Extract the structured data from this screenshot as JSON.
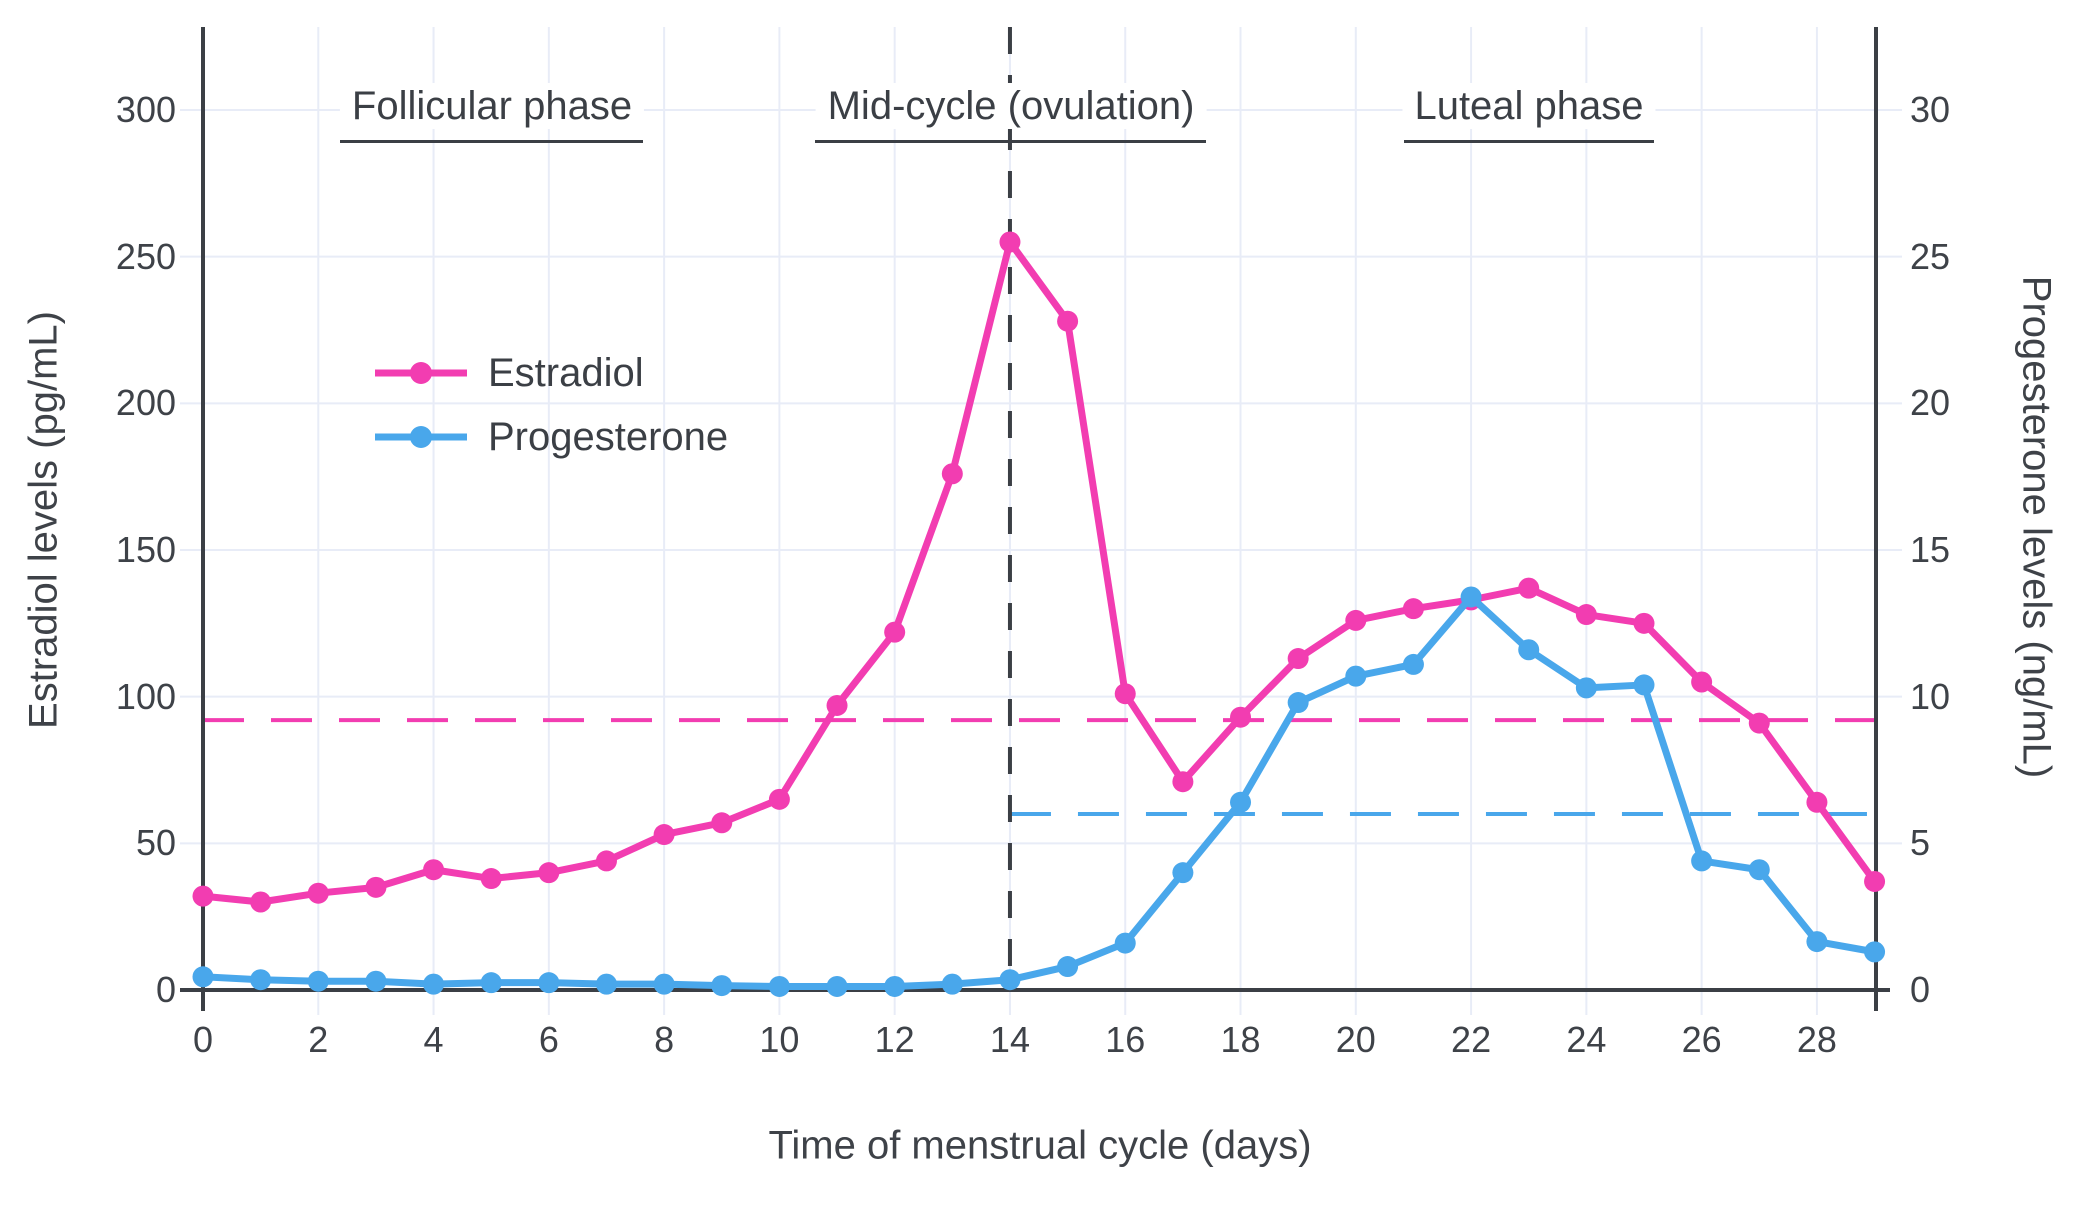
{
  "chart_data": {
    "type": "line",
    "title": "",
    "xlabel": "Time of menstrual cycle (days)",
    "ylabel_left": "Estradiol levels (pg/mL)",
    "ylabel_right": "Progesterone levels (ng/mL)",
    "x": [
      0,
      1,
      2,
      3,
      4,
      5,
      6,
      7,
      8,
      9,
      10,
      11,
      12,
      13,
      14,
      15,
      16,
      17,
      18,
      19,
      20,
      21,
      22,
      23,
      24,
      25,
      26,
      27,
      28,
      29
    ],
    "x_ticks": [
      0,
      2,
      4,
      6,
      8,
      10,
      12,
      14,
      16,
      18,
      20,
      22,
      24,
      26,
      28
    ],
    "y_ticks_left": [
      0,
      50,
      100,
      150,
      200,
      250,
      300
    ],
    "y_ticks_right": [
      0,
      5,
      10,
      15,
      20,
      25,
      30
    ],
    "xlim": [
      0,
      29
    ],
    "ylim_left": [
      0,
      327
    ],
    "ylim_right": [
      0,
      32.7
    ],
    "grid": true,
    "legend_position": "upper-left-inside",
    "series": [
      {
        "name": "Estradiol",
        "axis": "left",
        "unit": "pg/mL",
        "color": "#f23db1",
        "values": [
          32,
          30,
          33,
          35,
          41,
          38,
          40,
          44,
          53,
          57,
          65,
          97,
          122,
          176,
          255,
          228,
          101,
          71,
          93,
          113,
          126,
          130,
          133,
          137,
          128,
          125,
          105,
          91,
          64,
          37
        ]
      },
      {
        "name": "Progesterone",
        "axis": "right",
        "unit": "ng/mL",
        "color": "#49a7eb",
        "values": [
          0.45,
          0.35,
          0.3,
          0.3,
          0.2,
          0.25,
          0.25,
          0.2,
          0.2,
          0.15,
          0.12,
          0.12,
          0.12,
          0.2,
          0.35,
          0.8,
          1.6,
          4.0,
          6.4,
          9.8,
          10.7,
          11.1,
          13.4,
          11.6,
          10.3,
          10.4,
          4.4,
          4.1,
          1.65,
          1.3
        ]
      }
    ],
    "reference_lines": [
      {
        "name": "estradiol-reference",
        "orientation": "horizontal",
        "axis": "left",
        "value": 92,
        "color": "#f23db1",
        "style": "dashed",
        "day_start": 0,
        "day_end": 29
      },
      {
        "name": "progesterone-reference",
        "orientation": "horizontal",
        "axis": "right",
        "value": 6,
        "color": "#49a7eb",
        "style": "dashed",
        "day_start": 14,
        "day_end": 29
      },
      {
        "name": "ovulation-day-line",
        "orientation": "vertical",
        "value": 14,
        "color": "#3b3f45",
        "style": "dashed"
      }
    ],
    "annotations": [
      {
        "label": "Follicular phase",
        "day_center": 5,
        "underline_width": 303
      },
      {
        "label": "Mid-cycle (ovulation)",
        "day_center": 14,
        "underline_width": 391
      },
      {
        "label": "Luteal phase",
        "day_center": 23,
        "underline_width": 250
      }
    ],
    "colors": {
      "estradiol": "#f23db1",
      "progesterone": "#49a7eb",
      "axis": "#3b3f45",
      "text": "#3e4248",
      "gridline": "#e8ecf7",
      "background": "#ffffff"
    }
  }
}
